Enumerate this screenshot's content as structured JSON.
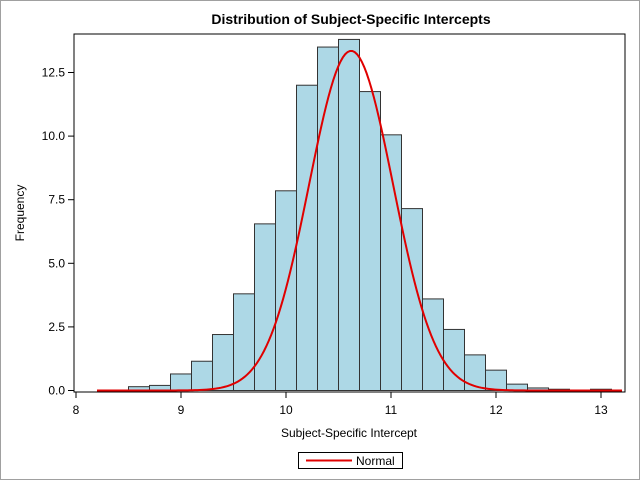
{
  "chart_data": {
    "type": "bar",
    "title": "Distribution of Subject-Specific Intercepts",
    "xlabel": "Subject-Specific Intercept",
    "ylabel": "Frequency",
    "xlim": [
      8,
      13.2
    ],
    "ylim": [
      0,
      14
    ],
    "xticks": [
      "8",
      "9",
      "10",
      "11",
      "12",
      "13"
    ],
    "yticks": [
      "0.0",
      "2.5",
      "5.0",
      "7.5",
      "10.0",
      "12.5"
    ],
    "bin_width": 0.2,
    "bins": [
      {
        "x": 8.6,
        "value": 0.15
      },
      {
        "x": 8.8,
        "value": 0.2
      },
      {
        "x": 9.0,
        "value": 0.65
      },
      {
        "x": 9.2,
        "value": 1.15
      },
      {
        "x": 9.4,
        "value": 2.2
      },
      {
        "x": 9.6,
        "value": 3.8
      },
      {
        "x": 9.8,
        "value": 6.55
      },
      {
        "x": 10.0,
        "value": 7.85
      },
      {
        "x": 10.2,
        "value": 12.0
      },
      {
        "x": 10.4,
        "value": 13.5
      },
      {
        "x": 10.6,
        "value": 13.8
      },
      {
        "x": 10.8,
        "value": 11.75
      },
      {
        "x": 11.0,
        "value": 10.05
      },
      {
        "x": 11.2,
        "value": 7.15
      },
      {
        "x": 11.4,
        "value": 3.6
      },
      {
        "x": 11.6,
        "value": 2.4
      },
      {
        "x": 11.8,
        "value": 1.4
      },
      {
        "x": 12.0,
        "value": 0.8
      },
      {
        "x": 12.2,
        "value": 0.25
      },
      {
        "x": 12.4,
        "value": 0.1
      },
      {
        "x": 12.6,
        "value": 0.05
      },
      {
        "x": 12.8,
        "value": 0.0
      },
      {
        "x": 13.0,
        "value": 0.05
      }
    ],
    "series": [
      {
        "name": "Normal",
        "kind": "curve",
        "mean": 10.62,
        "sd": 0.4,
        "peak": 13.35,
        "x_range": [
          8.2,
          13.2
        ],
        "color": "#e00000"
      }
    ],
    "legend": {
      "position": "bottom-center",
      "entries": [
        "Normal"
      ]
    },
    "grid": false,
    "bar_fill": "#add8e6",
    "bar_stroke": "#333333"
  }
}
